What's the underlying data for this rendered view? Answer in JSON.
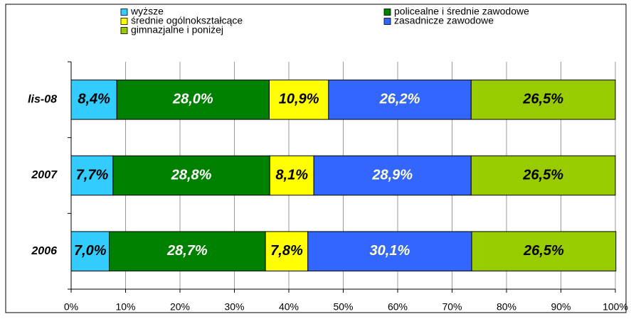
{
  "chart_data": {
    "type": "bar",
    "orientation": "horizontal",
    "stacked": true,
    "categories": [
      "lis-08",
      "2007",
      "2006"
    ],
    "series": [
      {
        "name": "wyższe",
        "color": "#33ccff",
        "label_color": "#000000",
        "values": [
          8.4,
          7.7,
          7.0
        ],
        "value_labels": [
          "8,4%",
          "7,7%",
          "7,0%"
        ]
      },
      {
        "name": "policealne i średnie zawodowe",
        "color": "#008000",
        "label_color": "#ffffff",
        "values": [
          28.0,
          28.8,
          28.7
        ],
        "value_labels": [
          "28,0%",
          "28,8%",
          "28,7%"
        ]
      },
      {
        "name": "średnie ogólnokształcące",
        "color": "#ffff00",
        "label_color": "#000000",
        "values": [
          10.9,
          8.1,
          7.8
        ],
        "value_labels": [
          "10,9%",
          "8,1%",
          "7,8%"
        ]
      },
      {
        "name": "zasadnicze zawodowe",
        "color": "#3366ff",
        "label_color": "#ffffcc",
        "values": [
          26.2,
          28.9,
          30.1
        ],
        "value_labels": [
          "26,2%",
          "28,9%",
          "30,1%"
        ]
      },
      {
        "name": "gimnazjalne i poniżej",
        "color": "#99cc00",
        "label_color": "#000000",
        "values": [
          26.5,
          26.5,
          26.5
        ],
        "value_labels": [
          "26,5%",
          "26,5%",
          "26,5%"
        ]
      }
    ],
    "xlim": [
      0,
      100
    ],
    "xticks": [
      {
        "value": 0,
        "label": "0%"
      },
      {
        "value": 10,
        "label": "10%"
      },
      {
        "value": 20,
        "label": "20%"
      },
      {
        "value": 30,
        "label": "30%"
      },
      {
        "value": 40,
        "label": "40%"
      },
      {
        "value": 50,
        "label": "50%"
      },
      {
        "value": 60,
        "label": "60%"
      },
      {
        "value": 70,
        "label": "70%"
      },
      {
        "value": 80,
        "label": "80%"
      },
      {
        "value": 90,
        "label": "90%"
      },
      {
        "value": 100,
        "label": "100%"
      }
    ],
    "grid": true,
    "legend": "top"
  }
}
